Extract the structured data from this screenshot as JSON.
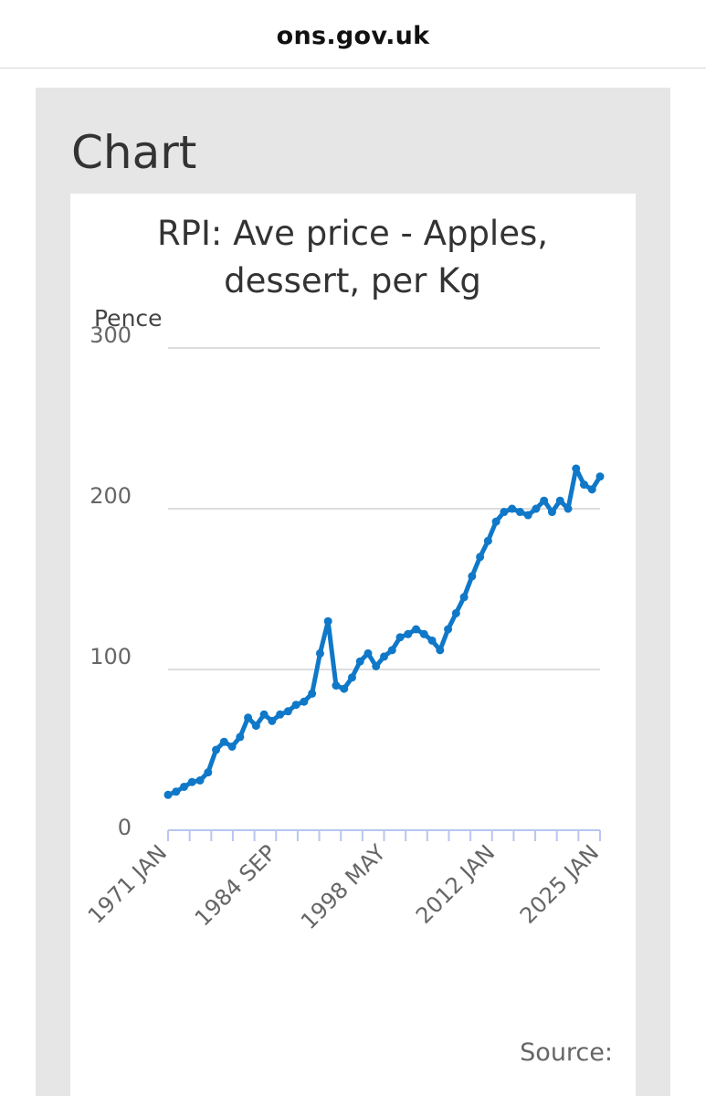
{
  "browser": {
    "url": "ons.gov.uk"
  },
  "section_title": "Chart",
  "source_label": "Source:",
  "colors": {
    "series": "#0f78c8",
    "grid": "#dddddd",
    "axis": "#b8c6f0",
    "text": "#444444"
  },
  "chart_data": {
    "type": "line",
    "title": "RPI: Ave price - Apples, dessert, per Kg",
    "title_lines": [
      "RPI: Ave price - Apples,",
      "dessert, per Kg"
    ],
    "ylabel": "Pence",
    "xlabel": "",
    "ylim": [
      0,
      300
    ],
    "yticks": [
      0,
      100,
      200,
      300
    ],
    "xticks": [
      "1971 JAN",
      "1984 SEP",
      "1998 MAY",
      "2012 JAN",
      "2025 JAN"
    ],
    "x_range": [
      "1971-01",
      "2025-01"
    ],
    "grid": true,
    "legend": "none",
    "series": [
      {
        "x": [
          "1971-01",
          "1972-01",
          "1973-01",
          "1974-01",
          "1975-01",
          "1976-01",
          "1977-01",
          "1978-01",
          "1979-01",
          "1980-01",
          "1981-01",
          "1982-01",
          "1983-01",
          "1984-01",
          "1985-01",
          "1986-01",
          "1987-01",
          "1988-01",
          "1989-01",
          "1990-01",
          "1991-01",
          "1992-01",
          "1993-01",
          "1994-01",
          "1995-01",
          "1996-01",
          "1997-01",
          "1998-01",
          "1999-01",
          "2000-01",
          "2001-01",
          "2002-01",
          "2003-01",
          "2004-01",
          "2005-01",
          "2006-01",
          "2007-01",
          "2008-01",
          "2009-01",
          "2010-01",
          "2011-01",
          "2012-01",
          "2013-01",
          "2014-01",
          "2015-01",
          "2016-01",
          "2017-01",
          "2018-01",
          "2019-01",
          "2020-01",
          "2021-01",
          "2022-01",
          "2023-01",
          "2024-01",
          "2025-01"
        ],
        "values": [
          22,
          24,
          27,
          30,
          31,
          36,
          50,
          55,
          52,
          58,
          70,
          65,
          72,
          68,
          72,
          74,
          78,
          80,
          85,
          110,
          130,
          90,
          88,
          95,
          105,
          110,
          102,
          108,
          112,
          120,
          122,
          125,
          122,
          118,
          112,
          125,
          135,
          145,
          158,
          170,
          180,
          192,
          198,
          200,
          198,
          196,
          200,
          205,
          198,
          205,
          200,
          225,
          215,
          212,
          220
        ]
      }
    ]
  }
}
